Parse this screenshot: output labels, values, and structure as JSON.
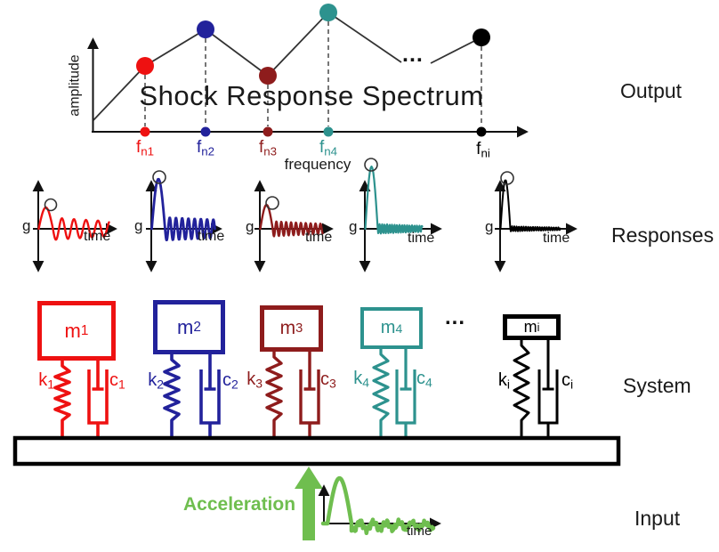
{
  "colors": {
    "red": "#ee1111",
    "blue": "#22229b",
    "darkred": "#8e1c1c",
    "teal": "#2d928e",
    "black": "#000000",
    "green": "#6fbe4f",
    "text": "#1a1a1a"
  },
  "output_section": {
    "section_label": "Output",
    "title": "Shock Response Spectrum",
    "y_axis_label": "amplitude",
    "x_axis_label": "frequency",
    "ellipsis": "...",
    "frequencies": [
      {
        "base": "f",
        "sub": "n1",
        "color": "red"
      },
      {
        "base": "f",
        "sub": "n2",
        "color": "blue"
      },
      {
        "base": "f",
        "sub": "n3",
        "color": "darkred"
      },
      {
        "base": "f",
        "sub": "n4",
        "color": "teal"
      },
      {
        "base": "f",
        "sub": "ni",
        "color": "black"
      }
    ]
  },
  "responses_section": {
    "section_label": "Responses",
    "plots": [
      {
        "y_label": "g",
        "x_label": "time",
        "color": "red"
      },
      {
        "y_label": "g",
        "x_label": "time",
        "color": "blue"
      },
      {
        "y_label": "g",
        "x_label": "time",
        "color": "darkred"
      },
      {
        "y_label": "g",
        "x_label": "time",
        "color": "teal"
      },
      {
        "y_label": "g",
        "x_label": "time",
        "color": "black"
      }
    ]
  },
  "system_section": {
    "section_label": "System",
    "ellipsis": "...",
    "units": [
      {
        "mass_base": "m",
        "mass_sub": "1",
        "spring_base": "k",
        "spring_sub": "1",
        "damper_base": "c",
        "damper_sub": "1",
        "color": "red"
      },
      {
        "mass_base": "m",
        "mass_sub": "2",
        "spring_base": "k",
        "spring_sub": "2",
        "damper_base": "c",
        "damper_sub": "2",
        "color": "blue"
      },
      {
        "mass_base": "m",
        "mass_sub": "3",
        "spring_base": "k",
        "spring_sub": "3",
        "damper_base": "c",
        "damper_sub": "3",
        "color": "darkred"
      },
      {
        "mass_base": "m",
        "mass_sub": "4",
        "spring_base": "k",
        "spring_sub": "4",
        "damper_base": "c",
        "damper_sub": "4",
        "color": "teal"
      },
      {
        "mass_base": "m",
        "mass_sub": "i",
        "spring_base": "k",
        "spring_sub": "i",
        "damper_base": "c",
        "damper_sub": "i",
        "color": "black"
      }
    ]
  },
  "input_section": {
    "section_label": "Input",
    "arrow_label": "Acceleration",
    "x_label": "time",
    "color": "green"
  }
}
